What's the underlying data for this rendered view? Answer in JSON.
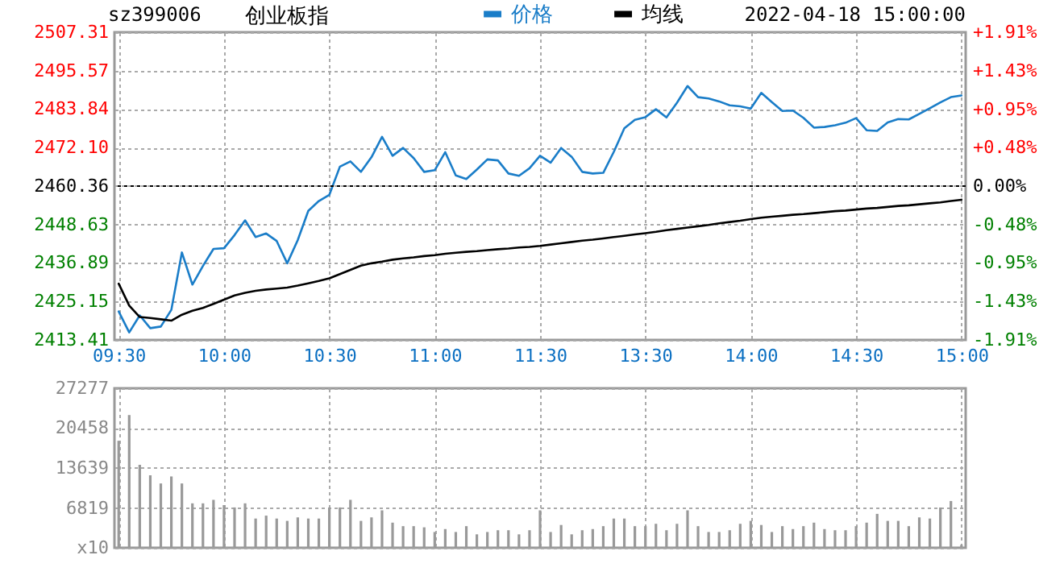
{
  "chart_data": [
    {
      "type": "line",
      "title": "创业板指",
      "annotations": [
        "sz399006",
        "2022-04-18 15:00:00"
      ],
      "categories": [
        "09:30",
        null,
        null,
        null,
        null,
        null,
        null,
        null,
        null,
        null,
        "10:00",
        null,
        null,
        null,
        null,
        null,
        null,
        null,
        null,
        null,
        "10:30",
        null,
        null,
        null,
        null,
        null,
        null,
        null,
        null,
        null,
        "11:00",
        null,
        null,
        null,
        null,
        null,
        null,
        null,
        null,
        null,
        "11:30",
        null,
        null,
        null,
        null,
        null,
        null,
        null,
        null,
        null,
        "13:30",
        null,
        null,
        null,
        null,
        null,
        null,
        null,
        null,
        null,
        "14:00",
        null,
        null,
        null,
        null,
        null,
        null,
        null,
        null,
        null,
        "14:30",
        null,
        null,
        null,
        null,
        null,
        null,
        null,
        null,
        null,
        "15:00"
      ],
      "ylim": [
        2413.41,
        2507.31
      ],
      "yticks": [
        2413.41,
        2425.15,
        2436.89,
        2448.63,
        2460.36,
        {
          "value": 2472.1,
          "label": "2472.10"
        },
        2483.84,
        2495.57,
        2507.31
      ],
      "y2lim": [
        -1.91,
        1.91
      ],
      "y2ticks": [
        {
          "value": -1.91,
          "label": "-1.91%"
        },
        {
          "value": -1.43,
          "label": "-1.43%"
        },
        {
          "value": -0.95,
          "label": "-0.95%"
        },
        {
          "value": -0.48,
          "label": "-0.48%"
        },
        {
          "value": 0,
          "label": "0.00%"
        },
        {
          "value": 0.48,
          "label": "+0.48%"
        },
        {
          "value": 0.95,
          "label": "+0.95%"
        },
        {
          "value": 1.43,
          "label": "+1.43%"
        },
        {
          "value": 1.91,
          "label": "+1.91%"
        }
      ],
      "grid": true,
      "legend": "top",
      "ref_lines": [
        {
          "axis": "y",
          "value": 2460.36,
          "color": "#000000",
          "line_style": "dashed"
        }
      ],
      "series": [
        {
          "name": "价格",
          "color": "#1a7dc8",
          "values": [
            2422.1,
            2415.7,
            2420.9,
            2417.0,
            2417.5,
            2422.6,
            2440.1,
            2430.3,
            2436.0,
            2441.2,
            2441.4,
            2445.4,
            2449.9,
            2444.8,
            2445.9,
            2443.6,
            2436.8,
            2443.9,
            2452.8,
            2455.8,
            2457.7,
            2466.3,
            2467.9,
            2464.7,
            2469.2,
            2475.4,
            2469.6,
            2472.0,
            2468.9,
            2464.7,
            2465.2,
            2470.7,
            2463.6,
            2462.5,
            2465.4,
            2468.5,
            2468.2,
            2464.2,
            2463.5,
            2465.8,
            2469.6,
            2467.5,
            2472.0,
            2469.3,
            2464.7,
            2464.2,
            2464.4,
            2470.8,
            2478.0,
            2480.6,
            2481.4,
            2483.8,
            2481.3,
            2485.8,
            2490.9,
            2487.5,
            2487.1,
            2486.2,
            2485.0,
            2484.7,
            2484.0,
            2488.8,
            2486.0,
            2483.3,
            2483.4,
            2481.2,
            2478.2,
            2478.4,
            2478.9,
            2479.7,
            2481.1,
            2477.4,
            2477.2,
            2479.8,
            2480.8,
            2480.7,
            2482.4,
            2484.1,
            2485.9,
            2487.5,
            2488.0
          ]
        },
        {
          "name": "均线",
          "color": "#000000",
          "values": [
            2430.6,
            2423.9,
            2420.4,
            2420.1,
            2419.7,
            2419.3,
            2421.1,
            2422.3,
            2423.2,
            2424.4,
            2425.7,
            2427.0,
            2427.8,
            2428.4,
            2428.8,
            2429.1,
            2429.4,
            2430.0,
            2430.7,
            2431.4,
            2432.2,
            2433.5,
            2434.8,
            2436.1,
            2436.8,
            2437.3,
            2437.9,
            2438.3,
            2438.6,
            2439.0,
            2439.3,
            2439.7,
            2440.0,
            2440.3,
            2440.5,
            2440.8,
            2441.1,
            2441.3,
            2441.6,
            2441.8,
            2442.1,
            2442.5,
            2442.9,
            2443.3,
            2443.7,
            2444.0,
            2444.4,
            2444.8,
            2445.2,
            2445.6,
            2446.0,
            2446.4,
            2446.9,
            2447.3,
            2447.7,
            2448.1,
            2448.5,
            2449.0,
            2449.4,
            2449.8,
            2450.3,
            2450.7,
            2451.0,
            2451.3,
            2451.6,
            2451.8,
            2452.1,
            2452.4,
            2452.7,
            2452.9,
            2453.2,
            2453.5,
            2453.7,
            2454.0,
            2454.3,
            2454.5,
            2454.8,
            2455.1,
            2455.4,
            2455.8,
            2456.2
          ]
        }
      ]
    },
    {
      "type": "bar",
      "tick_labels": "y",
      "grid": true,
      "color": "#999999",
      "categories": [
        null,
        null,
        null,
        null,
        null,
        null,
        null,
        null,
        null,
        null,
        null,
        null,
        null,
        null,
        null,
        null,
        null,
        null,
        null,
        null,
        null,
        null,
        null,
        null,
        null,
        null,
        null,
        null,
        null,
        null,
        null,
        null,
        null,
        null,
        null,
        null,
        null,
        null,
        null,
        null,
        null,
        null,
        null,
        null,
        null,
        null,
        null,
        null,
        null,
        null,
        null,
        null,
        null,
        null,
        null,
        null,
        null,
        null,
        null,
        null,
        null,
        null,
        null,
        null,
        null,
        null,
        null,
        null,
        null,
        null,
        null,
        null,
        null,
        null,
        null,
        null,
        null,
        null,
        null,
        null,
        null
      ],
      "ylim": [
        0,
        27277
      ],
      "yticks": [
        {
          "value": 0,
          "label": "x10"
        },
        6819,
        13639,
        20458,
        27277
      ],
      "values": [
        18300,
        22700,
        14200,
        12400,
        11000,
        12200,
        11000,
        7600,
        7600,
        8200,
        7300,
        6900,
        7600,
        5000,
        5500,
        5000,
        4600,
        5200,
        5000,
        5000,
        6900,
        6900,
        8200,
        4600,
        5200,
        6400,
        4300,
        3700,
        3700,
        3500,
        2700,
        3200,
        2700,
        3700,
        2300,
        2700,
        3000,
        3000,
        2300,
        3000,
        6400,
        2700,
        3900,
        2300,
        3000,
        3200,
        3700,
        5000,
        5000,
        3700,
        3700,
        4100,
        3000,
        4100,
        6400,
        3700,
        2700,
        2700,
        3000,
        4100,
        4600,
        3900,
        2700,
        3700,
        3200,
        3700,
        4300,
        3200,
        3000,
        3000,
        3700,
        4300,
        5800,
        4600,
        4600,
        3700,
        5200,
        5000,
        6900,
        8000,
        500
      ]
    }
  ]
}
